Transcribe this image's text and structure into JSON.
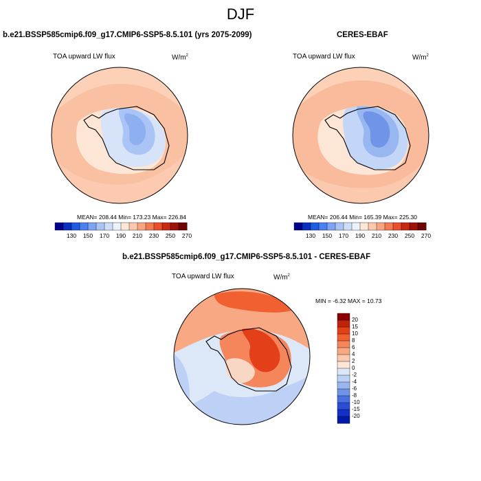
{
  "main_title": "DJF",
  "model_title": "b.e21.BSSP585cmip6.f09_g17.CMIP6-SSP5-8.5.101 (yrs 2075-2099)",
  "obs_title": "CERES-EBAF",
  "diff_title": "b.e21.BSSP585cmip6.f09_g17.CMIP6-SSP5-8.5.101 - CERES-EBAF",
  "variable": "TOA upward LW flux",
  "units": "W/m",
  "units_sup": "2",
  "model_stats": "MEAN= 208.44  Min= 173.23  Max= 226.84",
  "obs_stats": "MEAN= 206.44  Min= 165.39  Max= 225.30",
  "diff_stats": "MIN =  -6.32 MAX =  10.73",
  "colorbar_ticks": [
    "130",
    "150",
    "170",
    "190",
    "210",
    "230",
    "250",
    "270"
  ],
  "diff_colorbar_ticks": [
    "20",
    "15",
    "10",
    "8",
    "6",
    "4",
    "2",
    "0",
    "-2",
    "-4",
    "-6",
    "-8",
    "-10",
    "-15",
    "-20"
  ],
  "colors": {
    "abs_scale": [
      "#00008b",
      "#0a2fbf",
      "#1f5ce0",
      "#4a80ef",
      "#7ea3f2",
      "#aac4f5",
      "#cfdef8",
      "#ecf2fb",
      "#fde8d8",
      "#fcc9ad",
      "#f9a582",
      "#f47a54",
      "#e84f2c",
      "#c72a12",
      "#9e1308",
      "#6e0500"
    ],
    "diff_scale": [
      "#8b0000",
      "#c0220a",
      "#e3401a",
      "#f06030",
      "#f5855a",
      "#f8a883",
      "#fbc9ae",
      "#fde6d5",
      "#dce8f8",
      "#bcd1f5",
      "#98b6ef",
      "#6f93e8",
      "#4a6fe0",
      "#2a4dd6",
      "#1430c8",
      "#001aa8"
    ],
    "land": "#f6c3a6",
    "ocean_ring": "#fcd1b8"
  },
  "chart_data": [
    {
      "type": "heatmap",
      "panel": "model",
      "title": "b.e21.BSSP585cmip6.f09_g17.CMIP6-SSP5-8.5.101 (yrs 2075-2099)",
      "variable": "TOA upward LW flux",
      "units": "W/m2",
      "projection": "south polar stereographic",
      "mean": 208.44,
      "min": 173.23,
      "max": 226.84,
      "levels": [
        130,
        140,
        150,
        160,
        170,
        180,
        190,
        200,
        210,
        220,
        230,
        240,
        250,
        260,
        270
      ]
    },
    {
      "type": "heatmap",
      "panel": "obs",
      "title": "CERES-EBAF",
      "variable": "TOA upward LW flux",
      "units": "W/m2",
      "projection": "south polar stereographic",
      "mean": 206.44,
      "min": 165.39,
      "max": 225.3,
      "levels": [
        130,
        140,
        150,
        160,
        170,
        180,
        190,
        200,
        210,
        220,
        230,
        240,
        250,
        260,
        270
      ]
    },
    {
      "type": "heatmap",
      "panel": "difference",
      "title": "b.e21.BSSP585cmip6.f09_g17.CMIP6-SSP5-8.5.101 - CERES-EBAF",
      "variable": "TOA upward LW flux",
      "units": "W/m2",
      "projection": "south polar stereographic",
      "min": -6.32,
      "max": 10.73,
      "levels": [
        -20,
        -15,
        -10,
        -8,
        -6,
        -4,
        -2,
        0,
        2,
        4,
        6,
        8,
        10,
        15,
        20
      ]
    }
  ]
}
